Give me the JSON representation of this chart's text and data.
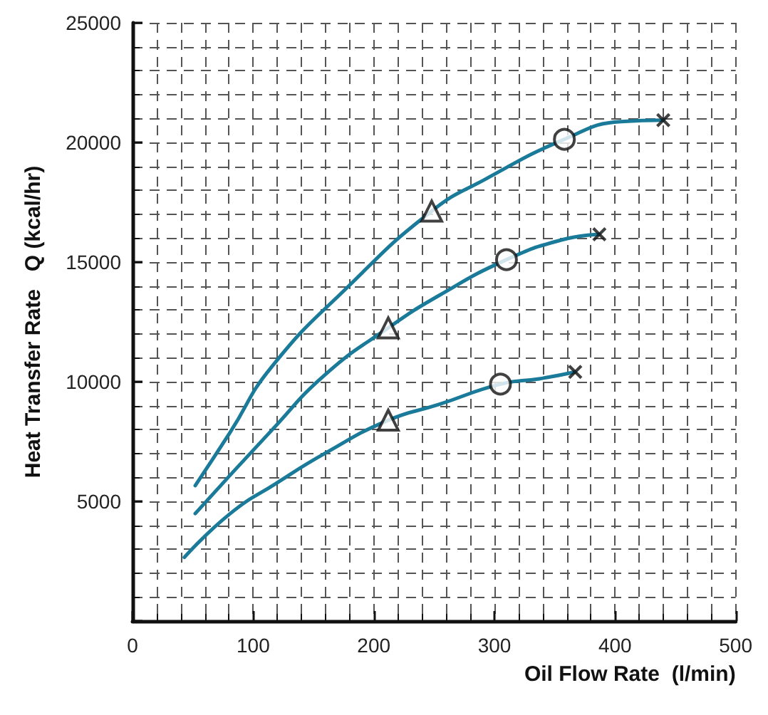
{
  "chart_data": {
    "type": "line",
    "xlabel": "Oil Flow Rate  (l/min)",
    "ylabel": "Heat Transfer Rate   Q (kcal/hr)",
    "xlim": [
      0,
      500
    ],
    "xticks": [
      0,
      100,
      200,
      300,
      400,
      500
    ],
    "ylim": [
      0,
      25000
    ],
    "yticks": [
      {
        "value": 0,
        "label": null
      },
      5000,
      10000,
      15000,
      20000,
      25000
    ],
    "grid": true,
    "marker": "none",
    "line_style": "solid",
    "series": [
      {
        "color": "#1a7a99",
        "x": [
          52,
          81,
          115,
          179,
          248,
          292,
          358,
          405,
          440
        ],
        "values": [
          5660,
          7890,
          10600,
          13990,
          17130,
          18450,
          20130,
          20870,
          20930
        ]
      },
      {
        "color": "#1a7a99",
        "x": [
          52,
          115,
          160,
          212,
          254,
          310,
          356,
          387
        ],
        "values": [
          4490,
          7950,
          10310,
          12250,
          13600,
          15100,
          15930,
          16160
        ]
      },
      {
        "color": "#1a7a99",
        "x": [
          43,
          81,
          119,
          160,
          212,
          254,
          305,
          337,
          367
        ],
        "values": [
          2660,
          4490,
          5750,
          7020,
          8390,
          9050,
          9900,
          10120,
          10410
        ]
      },
      {
        "type": "scatter",
        "marker": "triangle",
        "color": "#111111",
        "x": [
          248,
          212,
          212
        ],
        "values": [
          17130,
          12250,
          8390
        ]
      },
      {
        "type": "scatter",
        "marker": "circle",
        "color": "#111111",
        "x": [
          358,
          310,
          305
        ],
        "values": [
          20130,
          15100,
          9900
        ]
      },
      {
        "type": "scatter",
        "marker": "cross",
        "color": "#111111",
        "x": [
          440,
          387,
          367
        ],
        "values": [
          20930,
          16160,
          10410
        ]
      }
    ]
  }
}
